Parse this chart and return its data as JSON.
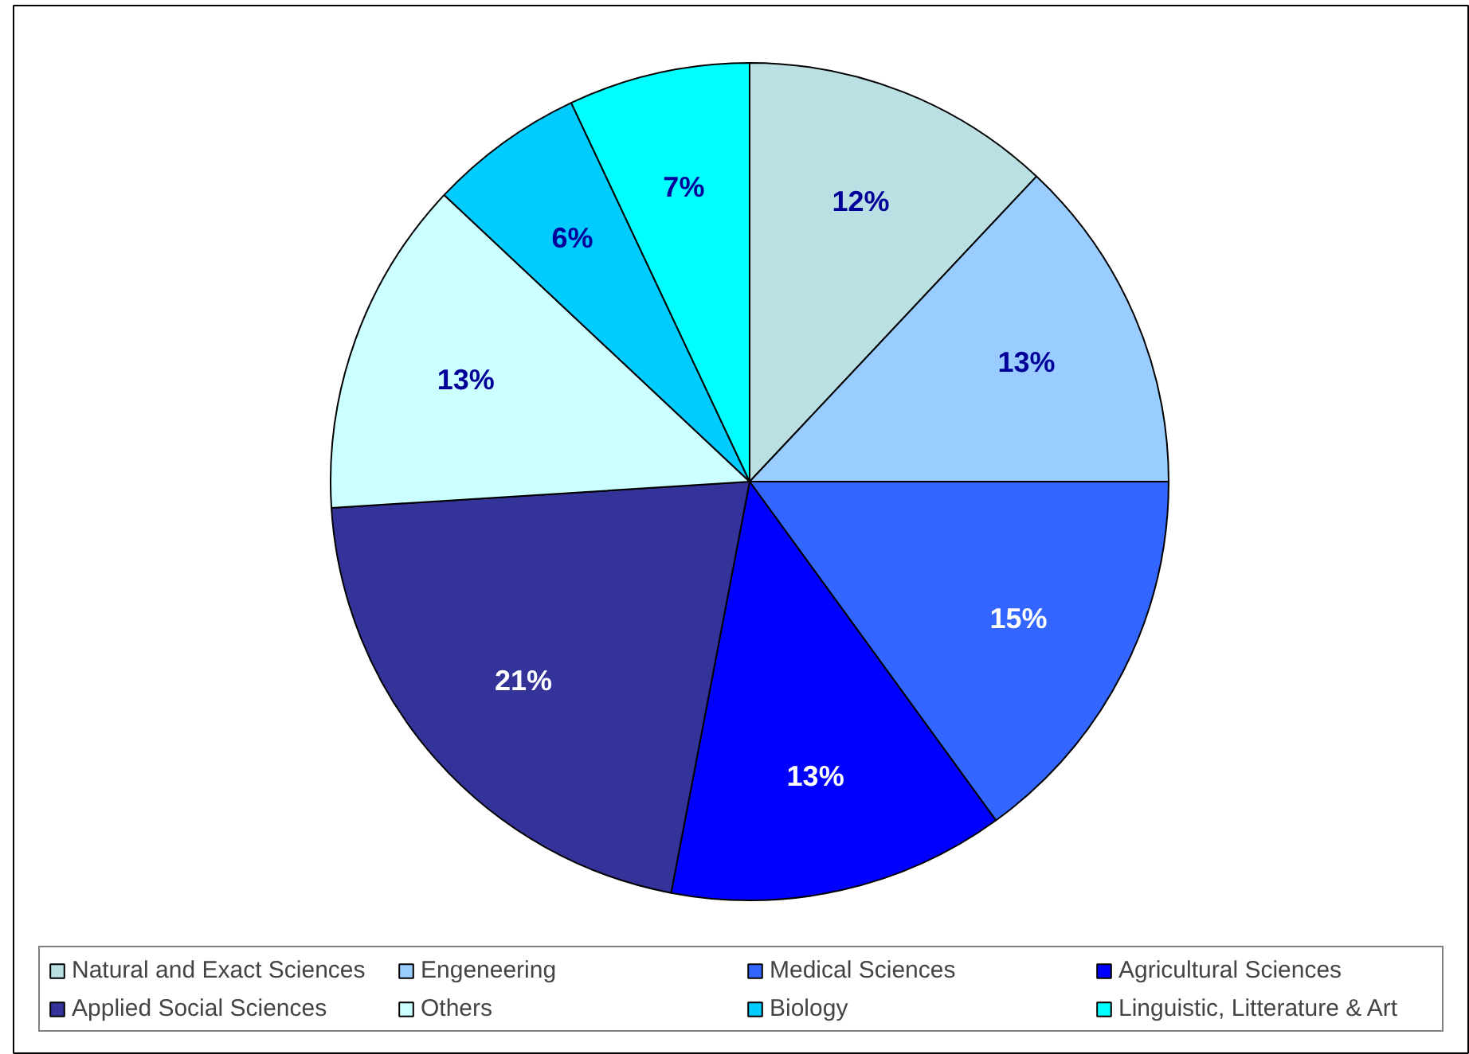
{
  "chart_data": {
    "type": "pie",
    "categories": [
      "Natural and Exact Sciences",
      "Engeneering",
      "Medical Sciences",
      "Agricultural Sciences",
      "Applied Social Sciences",
      "Others",
      "Biology",
      "Linguistic, Litterature & Art"
    ],
    "values": [
      12,
      13,
      15,
      13,
      21,
      13,
      6,
      7
    ],
    "colors": [
      "#bbe0e3",
      "#99ccff",
      "#3366ff",
      "#0000ff",
      "#333399",
      "#ccffff",
      "#00ccff",
      "#00ffff"
    ],
    "value_labels": [
      "12%",
      "13%",
      "15%",
      "13%",
      "21%",
      "13%",
      "6%",
      "7%"
    ],
    "legend": "bottom"
  }
}
